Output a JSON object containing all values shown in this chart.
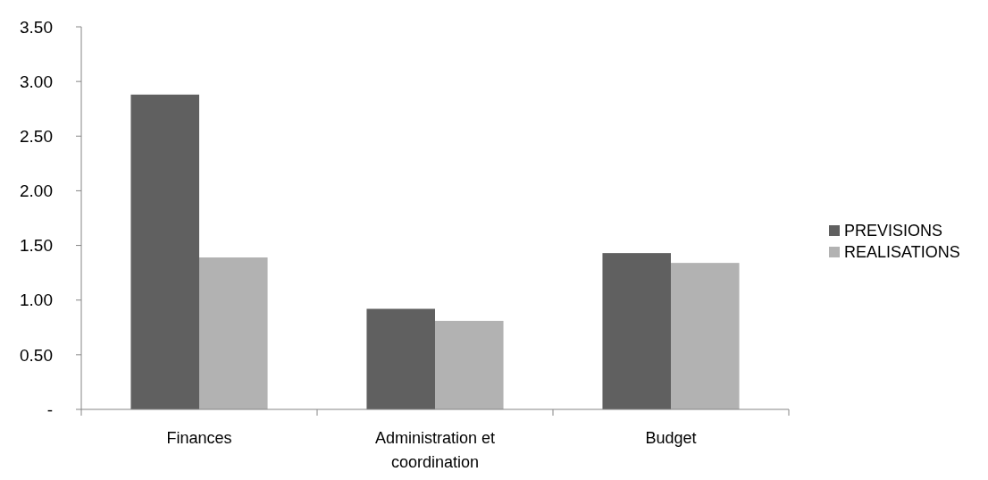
{
  "chart_data": {
    "type": "bar",
    "categories": [
      "Finances",
      "Administration et coordination",
      "Budget"
    ],
    "series": [
      {
        "name": "PREVISIONS",
        "color": "#606060",
        "values": [
          2.88,
          0.92,
          1.43
        ]
      },
      {
        "name": "REALISATIONS",
        "color": "#b2b2b2",
        "values": [
          1.39,
          0.81,
          1.34
        ]
      }
    ],
    "ylim": [
      0,
      3.5
    ],
    "yticks": [
      {
        "value": 0,
        "label": "-"
      },
      {
        "value": 0.5,
        "label": "0.50"
      },
      {
        "value": 1,
        "label": "1.00"
      },
      {
        "value": 1.5,
        "label": "1.50"
      },
      {
        "value": 2,
        "label": "2.00"
      },
      {
        "value": 2.5,
        "label": "2.50"
      },
      {
        "value": 3,
        "label": "3.00"
      },
      {
        "value": 3.5,
        "label": "3.50"
      }
    ],
    "grid": false,
    "legend": "right"
  }
}
